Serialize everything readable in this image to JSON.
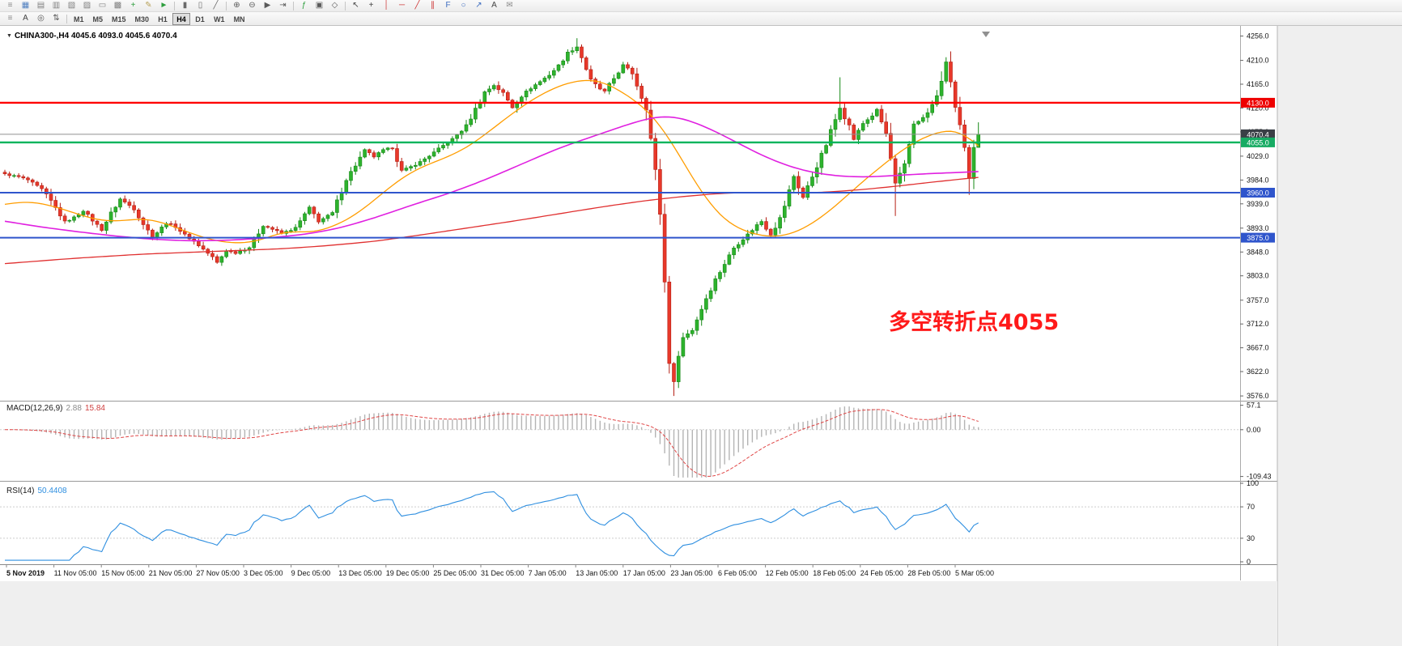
{
  "window": {
    "bg": "#f0f0f0"
  },
  "toolbar1": {
    "items": [
      {
        "name": "menu-grip-icon",
        "glyph": "≡",
        "color": "#8a8a8a"
      },
      {
        "name": "new-chart-icon",
        "glyph": "▦",
        "color": "#4f7fbf"
      },
      {
        "name": "profiles-icon",
        "glyph": "▤",
        "color": "#7f7f7f"
      },
      {
        "name": "market-watch-icon",
        "glyph": "▥",
        "color": "#7f7f7f"
      },
      {
        "name": "data-window-icon",
        "glyph": "▧",
        "color": "#7f7f7f"
      },
      {
        "name": "navigator-icon",
        "glyph": "▨",
        "color": "#7f7f7f"
      },
      {
        "name": "terminal-icon",
        "glyph": "▭",
        "color": "#7f7f7f"
      },
      {
        "name": "strategy-tester-icon",
        "glyph": "▩",
        "color": "#7f7f7f"
      },
      {
        "name": "new-order-icon",
        "glyph": "+",
        "color": "#2e9e3e"
      },
      {
        "name": "metaeditor-icon",
        "glyph": "✎",
        "color": "#b8a25a"
      },
      {
        "name": "autotrading-icon",
        "glyph": "►",
        "color": "#2e9e3e"
      },
      {
        "sep": true
      },
      {
        "name": "bar-chart-icon",
        "glyph": "▮",
        "color": "#6a6a6a"
      },
      {
        "name": "candlestick-chart-icon",
        "glyph": "▯",
        "color": "#6a6a6a"
      },
      {
        "name": "line-chart-icon",
        "glyph": "╱",
        "color": "#6a6a6a"
      },
      {
        "sep": true
      },
      {
        "name": "zoom-in-icon",
        "glyph": "⊕",
        "color": "#5a5a5a"
      },
      {
        "name": "zoom-out-icon",
        "glyph": "⊖",
        "color": "#5a5a5a"
      },
      {
        "name": "auto-scroll-icon",
        "glyph": "▶",
        "color": "#5a5a5a"
      },
      {
        "name": "chart-shift-icon",
        "glyph": "⇥",
        "color": "#5a5a5a"
      },
      {
        "sep": true
      },
      {
        "name": "indicators-icon",
        "glyph": "ƒ",
        "color": "#2e9e3e"
      },
      {
        "name": "periods-icon",
        "glyph": "▣",
        "color": "#5a5a5a"
      },
      {
        "name": "templates-icon",
        "glyph": "◇",
        "color": "#5a5a5a"
      },
      {
        "sep": true
      },
      {
        "name": "cursor-icon",
        "glyph": "↖",
        "color": "#444444"
      },
      {
        "name": "crosshair-icon",
        "glyph": "+",
        "color": "#444444"
      },
      {
        "name": "vertical-line-icon",
        "glyph": "│",
        "color": "#cc3333"
      },
      {
        "name": "horizontal-line-icon",
        "glyph": "─",
        "color": "#cc3333"
      },
      {
        "name": "trendline-icon",
        "glyph": "╱",
        "color": "#cc3333"
      },
      {
        "name": "equidistant-channel-icon",
        "glyph": "∥",
        "color": "#cc3333"
      },
      {
        "name": "fibonacci-icon",
        "glyph": "F",
        "color": "#3a6abf"
      },
      {
        "name": "shapes-icon",
        "glyph": "○",
        "color": "#3a6abf"
      },
      {
        "name": "arrows-icon",
        "glyph": "↗",
        "color": "#3a6abf"
      },
      {
        "name": "text-icon",
        "glyph": "A",
        "color": "#444444"
      },
      {
        "name": "mail-icon",
        "glyph": "✉",
        "color": "#8a8a8a"
      }
    ]
  },
  "toolbar2": {
    "icons": [
      {
        "name": "grip-icon",
        "glyph": "≡",
        "color": "#8a8a8a"
      },
      {
        "name": "label-icon",
        "glyph": "A",
        "color": "#444444"
      },
      {
        "name": "objects-list-icon",
        "glyph": "◎",
        "color": "#5a5a5a"
      },
      {
        "name": "zorder-icon",
        "glyph": "⇅",
        "color": "#5a5a5a"
      },
      {
        "sep": true
      }
    ],
    "timeframes": [
      {
        "label": "M1"
      },
      {
        "label": "M5"
      },
      {
        "label": "M15"
      },
      {
        "label": "M30"
      },
      {
        "label": "H1"
      },
      {
        "label": "H4",
        "active": true
      },
      {
        "label": "D1"
      },
      {
        "label": "W1"
      },
      {
        "label": "MN"
      }
    ]
  },
  "chart": {
    "dropdown_glyph": "▼",
    "title": "CHINA300-,H4 4045.6 4093.0 4045.6 4070.4",
    "annotation": {
      "text": "多空转折点4055",
      "color": "#ff1a1a"
    }
  },
  "chart_data": {
    "type": "candlestick",
    "symbol": "CHINA300-",
    "timeframe": "H4",
    "current_bar": {
      "open": 4045.6,
      "high": 4093.0,
      "low": 4045.6,
      "close": 4070.4
    },
    "num_candles": 212,
    "ylim": [
      3570,
      4266
    ],
    "y_ticks": [
      4256.0,
      4210.0,
      4165.0,
      4120.0,
      4075.0,
      4029.0,
      3984.0,
      3939.0,
      3893.0,
      3848.0,
      3803.0,
      3757.0,
      3712.0,
      3667.0,
      3622.0,
      3576.0
    ],
    "up_color": "#2db32d",
    "down_color": "#e8382a",
    "up_border": "#168816",
    "down_border": "#b51f14",
    "close_anchors": [
      [
        0,
        3995
      ],
      [
        3,
        3990
      ],
      [
        5,
        3984
      ],
      [
        8,
        3966
      ],
      [
        10,
        3944
      ],
      [
        13,
        3905
      ],
      [
        15,
        3913
      ],
      [
        17,
        3926
      ],
      [
        19,
        3908
      ],
      [
        21,
        3890
      ],
      [
        23,
        3921
      ],
      [
        25,
        3948
      ],
      [
        28,
        3930
      ],
      [
        30,
        3901
      ],
      [
        32,
        3876
      ],
      [
        35,
        3903
      ],
      [
        37,
        3896
      ],
      [
        39,
        3880
      ],
      [
        41,
        3868
      ],
      [
        43,
        3853
      ],
      [
        45,
        3838
      ],
      [
        46,
        3828
      ],
      [
        48,
        3851
      ],
      [
        50,
        3846
      ],
      [
        53,
        3857
      ],
      [
        56,
        3898
      ],
      [
        58,
        3891
      ],
      [
        60,
        3883
      ],
      [
        63,
        3893
      ],
      [
        66,
        3932
      ],
      [
        68,
        3906
      ],
      [
        71,
        3921
      ],
      [
        74,
        3986
      ],
      [
        76,
        4012
      ],
      [
        78,
        4040
      ],
      [
        80,
        4028
      ],
      [
        82,
        4040
      ],
      [
        84,
        4046
      ],
      [
        86,
        4001
      ],
      [
        88,
        4009
      ],
      [
        90,
        4018
      ],
      [
        93,
        4036
      ],
      [
        95,
        4049
      ],
      [
        97,
        4061
      ],
      [
        100,
        4086
      ],
      [
        102,
        4118
      ],
      [
        104,
        4150
      ],
      [
        106,
        4163
      ],
      [
        108,
        4148
      ],
      [
        110,
        4121
      ],
      [
        112,
        4143
      ],
      [
        114,
        4158
      ],
      [
        116,
        4170
      ],
      [
        118,
        4183
      ],
      [
        120,
        4200
      ],
      [
        122,
        4224
      ],
      [
        124,
        4236
      ],
      [
        125,
        4216
      ],
      [
        127,
        4172
      ],
      [
        129,
        4156
      ],
      [
        130,
        4151
      ],
      [
        132,
        4176
      ],
      [
        134,
        4201
      ],
      [
        136,
        4186
      ],
      [
        138,
        4141
      ],
      [
        139,
        4121
      ],
      [
        140,
        4062
      ],
      [
        141,
        4001
      ],
      [
        142,
        3921
      ],
      [
        143,
        3791
      ],
      [
        144,
        3641
      ],
      [
        145,
        3601
      ],
      [
        146,
        3656
      ],
      [
        147,
        3686
      ],
      [
        149,
        3701
      ],
      [
        151,
        3741
      ],
      [
        152,
        3761
      ],
      [
        154,
        3796
      ],
      [
        155,
        3811
      ],
      [
        157,
        3841
      ],
      [
        158,
        3856
      ],
      [
        160,
        3873
      ],
      [
        161,
        3881
      ],
      [
        163,
        3899
      ],
      [
        164,
        3906
      ],
      [
        166,
        3881
      ],
      [
        168,
        3911
      ],
      [
        169,
        3936
      ],
      [
        171,
        3991
      ],
      [
        173,
        3951
      ],
      [
        175,
        3991
      ],
      [
        176,
        4011
      ],
      [
        178,
        4051
      ],
      [
        179,
        4076
      ],
      [
        181,
        4121
      ],
      [
        183,
        4086
      ],
      [
        184,
        4061
      ],
      [
        186,
        4091
      ],
      [
        188,
        4106
      ],
      [
        189,
        4116
      ],
      [
        191,
        4071
      ],
      [
        193,
        3976
      ],
      [
        195,
        4011
      ],
      [
        197,
        4091
      ],
      [
        199,
        4101
      ],
      [
        200,
        4111
      ],
      [
        202,
        4141
      ],
      [
        204,
        4206
      ],
      [
        205,
        4171
      ],
      [
        206,
        4121
      ],
      [
        207,
        4086
      ],
      [
        208,
        4041
      ],
      [
        209,
        3986
      ],
      [
        210,
        4045.6
      ],
      [
        211,
        4070.4
      ]
    ],
    "wick_overrides": {
      "124": {
        "high": 4252
      },
      "145": {
        "low": 3576
      },
      "181": {
        "high": 4178
      },
      "193": {
        "low": 3916
      },
      "204": {
        "high": 4216
      },
      "209": {
        "low": 3956
      },
      "210": {
        "high": 4060
      },
      "211": {
        "high": 4093,
        "low": 4045.6
      }
    },
    "hlines": [
      {
        "price": 4130.0,
        "label": "4130.0",
        "color": "#ff0000",
        "width": 2.4,
        "badge": "#ee0000",
        "interactable": true
      },
      {
        "price": 4070.4,
        "label": "4070.4",
        "color": "#909090",
        "width": 1,
        "badge": "#3a3f46",
        "interactable": false
      },
      {
        "price": 4055.0,
        "label": "4055.0",
        "color": "#00b45c",
        "width": 2.4,
        "badge": "#17ab63",
        "interactable": true
      },
      {
        "price": 3960.0,
        "label": "3960.0",
        "color": "#2f55cc",
        "width": 2,
        "badge": "#2f55cc",
        "interactable": true
      },
      {
        "price": 3875.0,
        "label": "3875.0",
        "color": "#2f55cc",
        "width": 2,
        "badge": "#2f55cc",
        "interactable": true
      }
    ],
    "moving_averages": [
      {
        "name": "ma-fast-line",
        "color": "#ff9d00",
        "width": 1.3,
        "anchors": [
          [
            0,
            3938
          ],
          [
            5,
            3944
          ],
          [
            10,
            3936
          ],
          [
            15,
            3922
          ],
          [
            20,
            3908
          ],
          [
            25,
            3906
          ],
          [
            30,
            3912
          ],
          [
            35,
            3902
          ],
          [
            40,
            3884
          ],
          [
            45,
            3870
          ],
          [
            50,
            3864
          ],
          [
            55,
            3868
          ],
          [
            58,
            3880
          ],
          [
            62,
            3888
          ],
          [
            66,
            3884
          ],
          [
            70,
            3892
          ],
          [
            75,
            3912
          ],
          [
            80,
            3945
          ],
          [
            85,
            3982
          ],
          [
            90,
            4008
          ],
          [
            95,
            4024
          ],
          [
            100,
            4044
          ],
          [
            105,
            4076
          ],
          [
            110,
            4110
          ],
          [
            115,
            4140
          ],
          [
            120,
            4162
          ],
          [
            124,
            4172
          ],
          [
            128,
            4174
          ],
          [
            132,
            4160
          ],
          [
            136,
            4138
          ],
          [
            140,
            4110
          ],
          [
            143,
            4076
          ],
          [
            146,
            4034
          ],
          [
            149,
            3988
          ],
          [
            152,
            3948
          ],
          [
            155,
            3916
          ],
          [
            158,
            3896
          ],
          [
            162,
            3882
          ],
          [
            166,
            3876
          ],
          [
            170,
            3880
          ],
          [
            174,
            3896
          ],
          [
            178,
            3920
          ],
          [
            182,
            3950
          ],
          [
            186,
            3982
          ],
          [
            190,
            4010
          ],
          [
            194,
            4038
          ],
          [
            198,
            4060
          ],
          [
            202,
            4074
          ],
          [
            205,
            4080
          ],
          [
            208,
            4072
          ],
          [
            211,
            4048
          ]
        ]
      },
      {
        "name": "ma-mid-line",
        "color": "#e020e0",
        "width": 1.6,
        "anchors": [
          [
            0,
            3906
          ],
          [
            8,
            3895
          ],
          [
            16,
            3886
          ],
          [
            24,
            3878
          ],
          [
            32,
            3872
          ],
          [
            40,
            3869
          ],
          [
            48,
            3870
          ],
          [
            56,
            3874
          ],
          [
            64,
            3880
          ],
          [
            72,
            3892
          ],
          [
            80,
            3912
          ],
          [
            88,
            3936
          ],
          [
            96,
            3958
          ],
          [
            104,
            3984
          ],
          [
            112,
            4014
          ],
          [
            120,
            4044
          ],
          [
            128,
            4068
          ],
          [
            134,
            4086
          ],
          [
            140,
            4102
          ],
          [
            144,
            4105
          ],
          [
            148,
            4098
          ],
          [
            153,
            4080
          ],
          [
            158,
            4058
          ],
          [
            163,
            4035
          ],
          [
            168,
            4016
          ],
          [
            173,
            4002
          ],
          [
            178,
            3994
          ],
          [
            183,
            3990
          ],
          [
            188,
            3990
          ],
          [
            194,
            3993
          ],
          [
            200,
            3996
          ],
          [
            206,
            3998
          ],
          [
            211,
            4000
          ]
        ]
      },
      {
        "name": "ma-slow-line",
        "color": "#e03030",
        "width": 1.3,
        "anchors": [
          [
            0,
            3826
          ],
          [
            15,
            3836
          ],
          [
            30,
            3844
          ],
          [
            45,
            3849
          ],
          [
            60,
            3854
          ],
          [
            70,
            3860
          ],
          [
            80,
            3868
          ],
          [
            90,
            3880
          ],
          [
            100,
            3893
          ],
          [
            110,
            3906
          ],
          [
            120,
            3920
          ],
          [
            130,
            3934
          ],
          [
            138,
            3944
          ],
          [
            146,
            3952
          ],
          [
            154,
            3958
          ],
          [
            162,
            3961
          ],
          [
            170,
            3959
          ],
          [
            178,
            3961
          ],
          [
            186,
            3966
          ],
          [
            194,
            3973
          ],
          [
            202,
            3981
          ],
          [
            211,
            3989
          ]
        ]
      }
    ],
    "x_labels": [
      "5 Nov 2019",
      "11 Nov 05:00",
      "15 Nov 05:00",
      "21 Nov 05:00",
      "27 Nov 05:00",
      "3 Dec 05:00",
      "9 Dec 05:00",
      "13 Dec 05:00",
      "19 Dec 05:00",
      "25 Dec 05:00",
      "31 Dec 05:00",
      "7 Jan 05:00",
      "13 Jan 05:00",
      "17 Jan 05:00",
      "23 Jan 05:00",
      "6 Feb 05:00",
      "12 Feb 05:00",
      "18 Feb 05:00",
      "24 Feb 05:00",
      "28 Feb 05:00",
      "5 Mar 05:00"
    ],
    "macd": {
      "label": "MACD(12,26,9)",
      "value1": "2.88",
      "value2": "15.84",
      "fast": 12,
      "slow": 26,
      "signal": 9,
      "ticks": [
        {
          "v": 57.1,
          "label": "57.1"
        },
        {
          "v": 0,
          "label": "0.00"
        },
        {
          "v": -109.43,
          "label": "-109.43"
        }
      ],
      "ylim": [
        -114,
        62
      ],
      "hist_color": "#b4b4b4",
      "signal_color": "#e04545"
    },
    "rsi": {
      "label": "RSI(14)",
      "value": "50.4408",
      "period": 14,
      "ticks": [
        {
          "v": 100,
          "label": "100"
        },
        {
          "v": 70,
          "label": "70"
        },
        {
          "v": 30,
          "label": "30"
        },
        {
          "v": 0,
          "label": "0"
        }
      ],
      "levels": [
        70,
        30
      ],
      "ylim": [
        0,
        100
      ],
      "color": "#2f8fe0"
    }
  }
}
